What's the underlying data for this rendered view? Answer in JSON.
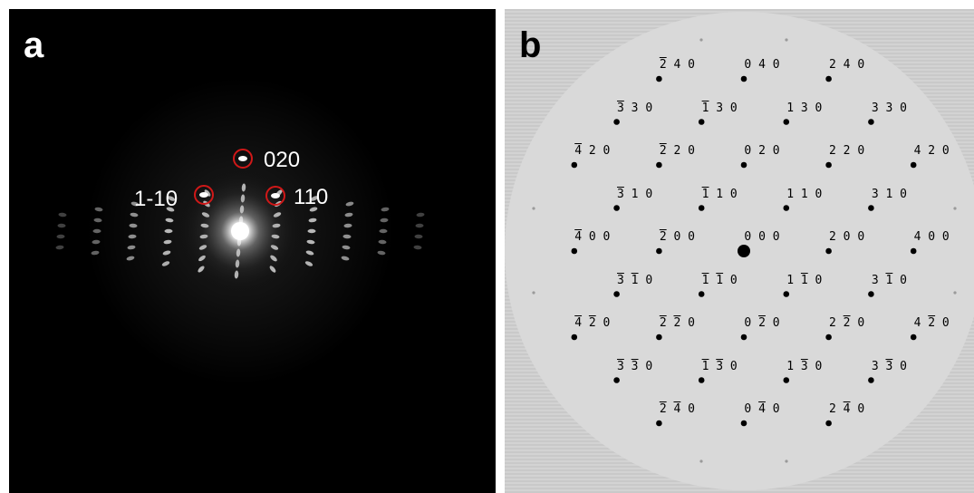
{
  "panel_a": {
    "letter": "a",
    "labels": {
      "l020": "020",
      "l1m10": "1-10",
      "l110": "110"
    },
    "highlight_color": "#d01818"
  },
  "panel_b": {
    "letter": "b",
    "spots": [
      {
        "h": "-2",
        "k": "4",
        "l": "0"
      },
      {
        "h": "0",
        "k": "4",
        "l": "0"
      },
      {
        "h": "2",
        "k": "4",
        "l": "0"
      },
      {
        "h": "-3",
        "k": "3",
        "l": "0"
      },
      {
        "h": "-1",
        "k": "3",
        "l": "0"
      },
      {
        "h": "1",
        "k": "3",
        "l": "0"
      },
      {
        "h": "3",
        "k": "3",
        "l": "0"
      },
      {
        "h": "-4",
        "k": "2",
        "l": "0"
      },
      {
        "h": "-2",
        "k": "2",
        "l": "0"
      },
      {
        "h": "0",
        "k": "2",
        "l": "0"
      },
      {
        "h": "2",
        "k": "2",
        "l": "0"
      },
      {
        "h": "4",
        "k": "2",
        "l": "0"
      },
      {
        "h": "-3",
        "k": "1",
        "l": "0"
      },
      {
        "h": "-1",
        "k": "1",
        "l": "0"
      },
      {
        "h": "1",
        "k": "1",
        "l": "0"
      },
      {
        "h": "3",
        "k": "1",
        "l": "0"
      },
      {
        "h": "-4",
        "k": "0",
        "l": "0"
      },
      {
        "h": "-2",
        "k": "0",
        "l": "0"
      },
      {
        "h": "0",
        "k": "0",
        "l": "0"
      },
      {
        "h": "2",
        "k": "0",
        "l": "0"
      },
      {
        "h": "4",
        "k": "0",
        "l": "0"
      },
      {
        "h": "-3",
        "k": "-1",
        "l": "0"
      },
      {
        "h": "-1",
        "k": "-1",
        "l": "0"
      },
      {
        "h": "1",
        "k": "-1",
        "l": "0"
      },
      {
        "h": "3",
        "k": "-1",
        "l": "0"
      },
      {
        "h": "-4",
        "k": "-2",
        "l": "0"
      },
      {
        "h": "-2",
        "k": "-2",
        "l": "0"
      },
      {
        "h": "0",
        "k": "-2",
        "l": "0"
      },
      {
        "h": "2",
        "k": "-2",
        "l": "0"
      },
      {
        "h": "4",
        "k": "-2",
        "l": "0"
      },
      {
        "h": "-3",
        "k": "-3",
        "l": "0"
      },
      {
        "h": "-1",
        "k": "-3",
        "l": "0"
      },
      {
        "h": "1",
        "k": "-3",
        "l": "0"
      },
      {
        "h": "3",
        "k": "-3",
        "l": "0"
      },
      {
        "h": "-2",
        "k": "-4",
        "l": "0"
      },
      {
        "h": "0",
        "k": "-4",
        "l": "0"
      },
      {
        "h": "2",
        "k": "-4",
        "l": "0"
      }
    ]
  }
}
